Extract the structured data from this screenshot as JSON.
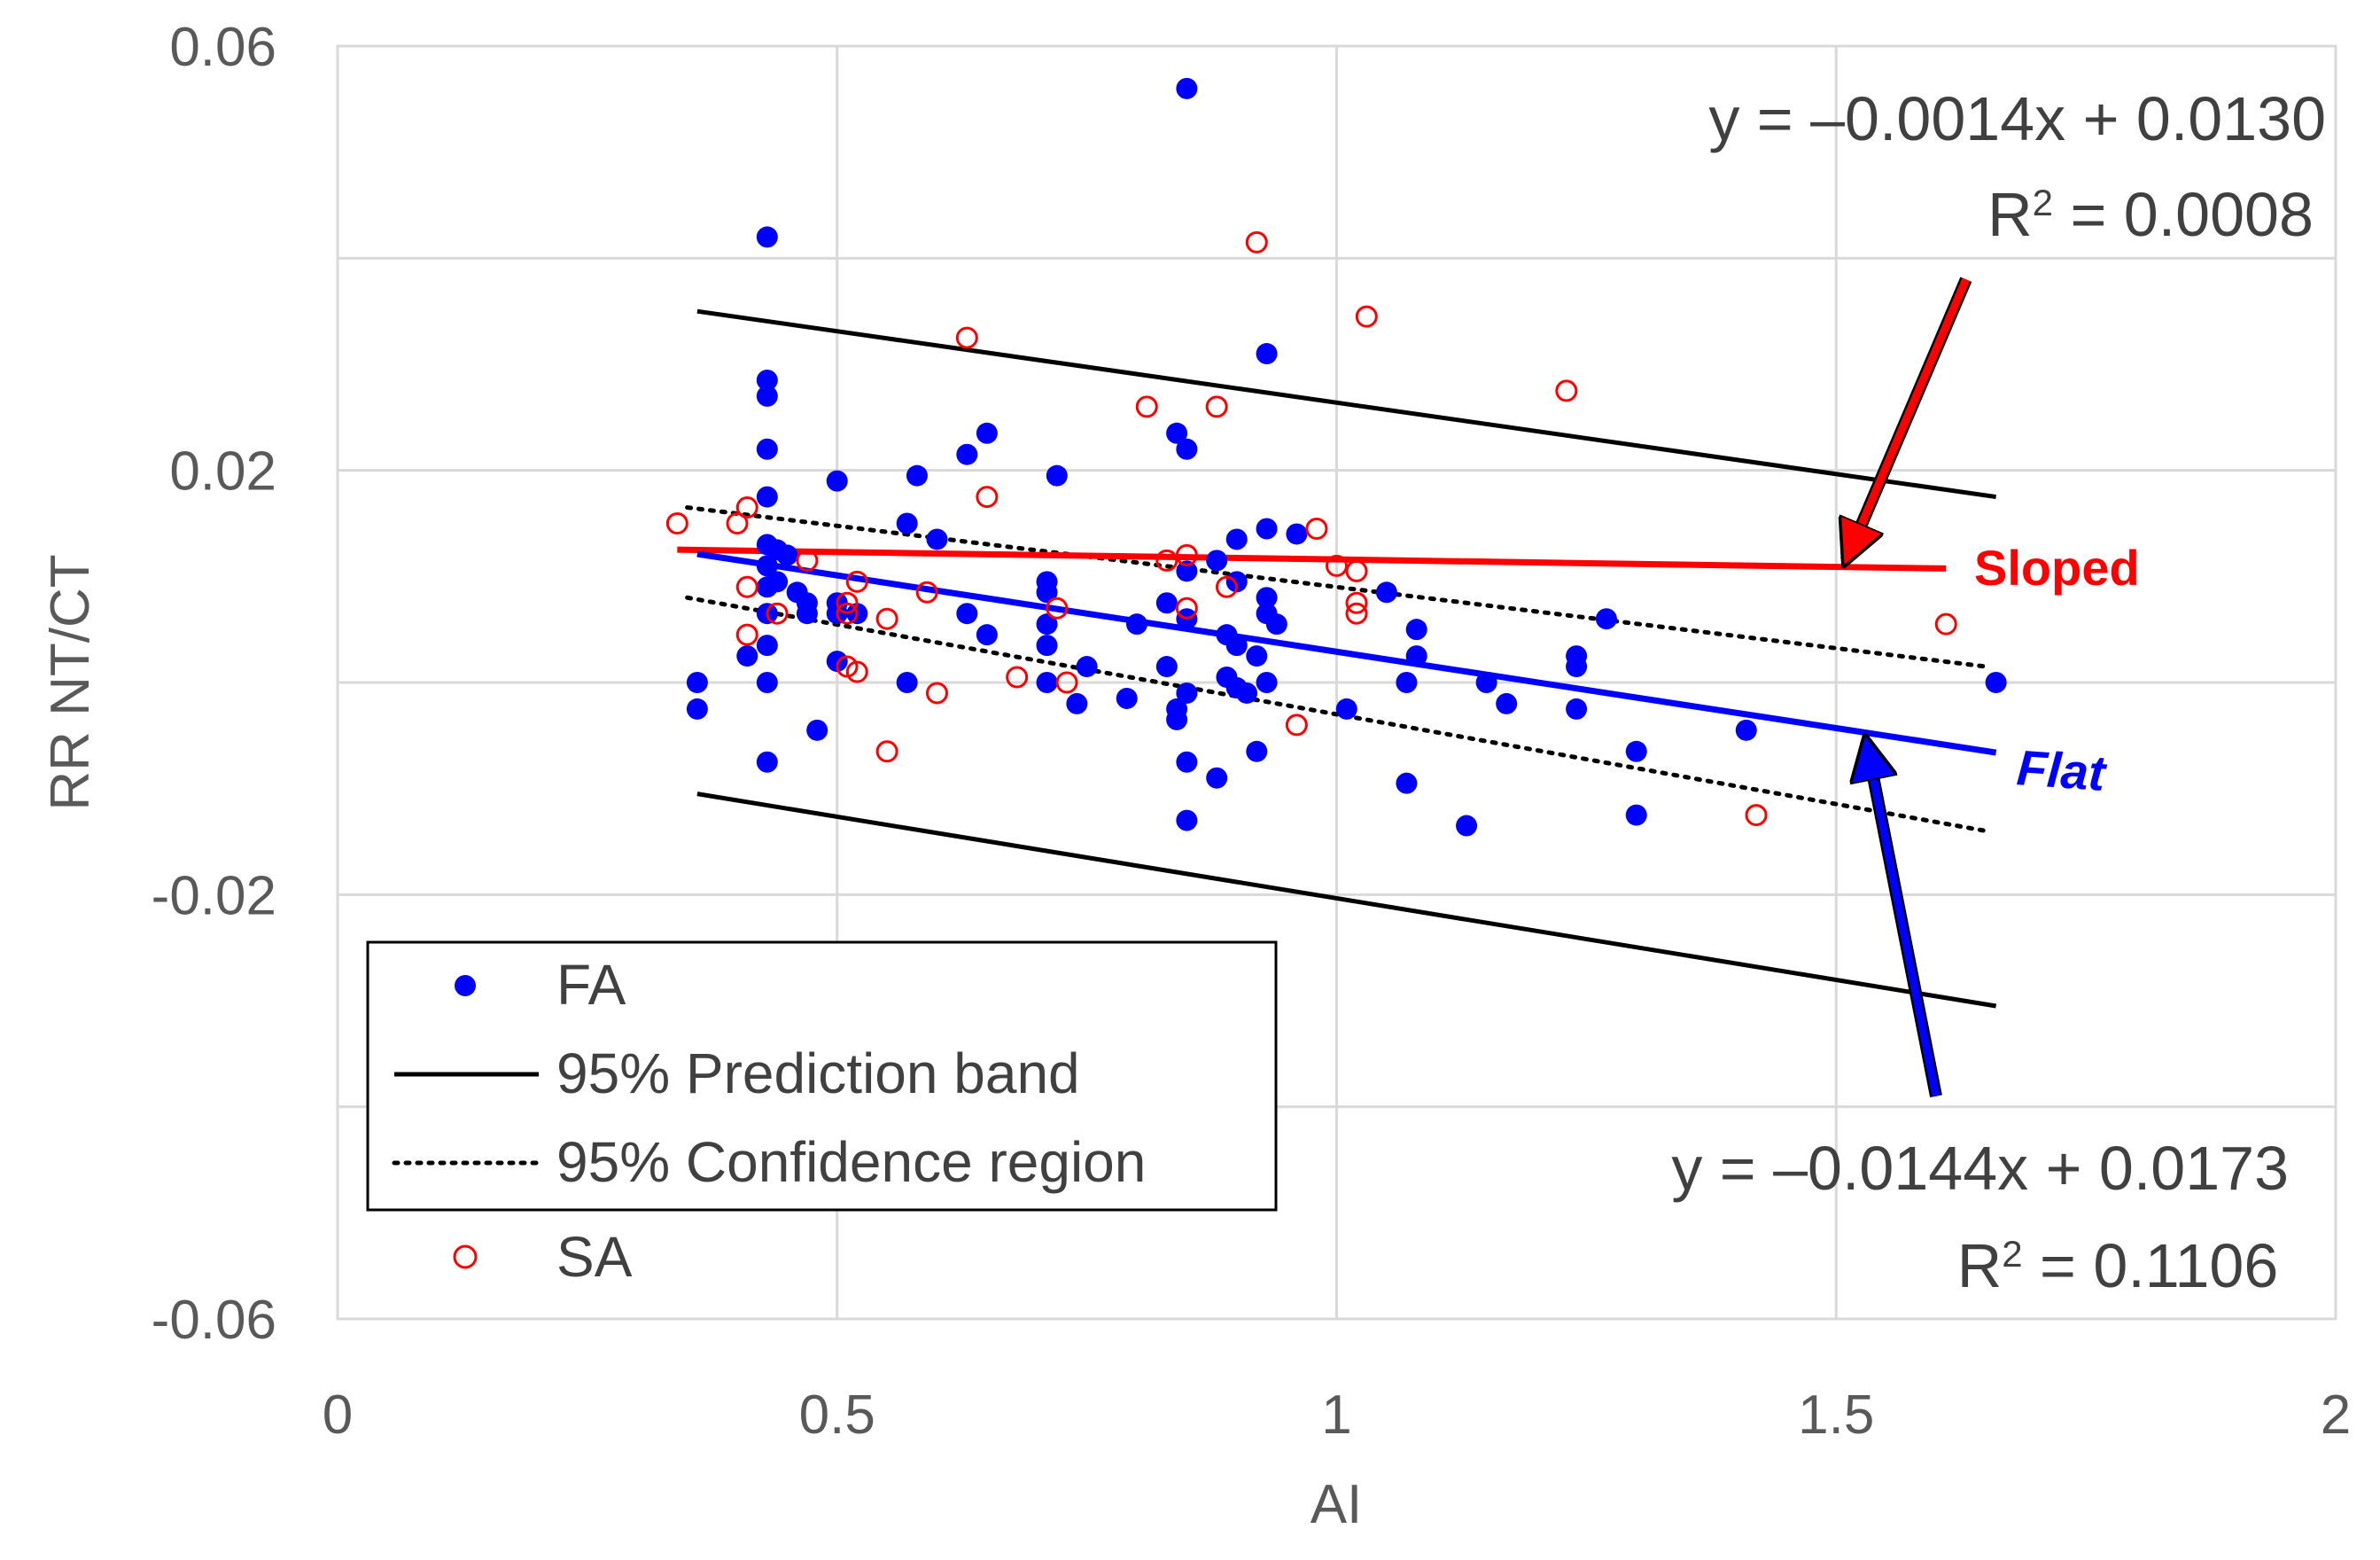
{
  "chart_data": {
    "type": "scatter",
    "title": "",
    "xlabel": "AI",
    "ylabel": "RR NT/CT",
    "xlim": [
      0,
      2
    ],
    "ylim": [
      -0.06,
      0.06
    ],
    "grid": true,
    "x_ticks": [
      0,
      0.5,
      1,
      1.5,
      2
    ],
    "x_tick_labels": [
      "0",
      "0.5",
      "1",
      "1.5",
      "2"
    ],
    "y_ticks": [
      -0.06,
      -0.02,
      0.02,
      0.06
    ],
    "y_tick_labels": [
      "-0.06",
      "-0.02",
      "0.02",
      "0.06"
    ],
    "colors": {
      "fa": "#0000ff",
      "sa": "#ff0000",
      "band": "#000000",
      "grid": "#d9d9d9",
      "axis_text": "#595959"
    },
    "series": [
      {
        "name": "FA",
        "marker": "filled-circle",
        "points": [
          [
            0.36,
            0.0
          ],
          [
            0.36,
            -0.0025
          ],
          [
            0.41,
            0.0025
          ],
          [
            0.43,
            0.042
          ],
          [
            0.43,
            0.0285
          ],
          [
            0.43,
            0.027
          ],
          [
            0.43,
            0.022
          ],
          [
            0.43,
            0.0175
          ],
          [
            0.43,
            0.013
          ],
          [
            0.43,
            0.011
          ],
          [
            0.43,
            0.009
          ],
          [
            0.43,
            0.0065
          ],
          [
            0.43,
            0.0035
          ],
          [
            0.43,
            0.0
          ],
          [
            0.43,
            -0.0075
          ],
          [
            0.44,
            0.0125
          ],
          [
            0.44,
            0.0095
          ],
          [
            0.45,
            0.012
          ],
          [
            0.46,
            0.0085
          ],
          [
            0.47,
            0.0065
          ],
          [
            0.47,
            0.0075
          ],
          [
            0.48,
            -0.0045
          ],
          [
            0.5,
            0.019
          ],
          [
            0.5,
            0.0075
          ],
          [
            0.5,
            0.0065
          ],
          [
            0.5,
            0.002
          ],
          [
            0.52,
            0.0065
          ],
          [
            0.57,
            0.015
          ],
          [
            0.57,
            0.0
          ],
          [
            0.58,
            0.0195
          ],
          [
            0.6,
            0.0135
          ],
          [
            0.63,
            0.0215
          ],
          [
            0.63,
            0.0065
          ],
          [
            0.65,
            0.0235
          ],
          [
            0.65,
            0.0045
          ],
          [
            0.72,
            0.0195
          ],
          [
            0.71,
            0.0095
          ],
          [
            0.71,
            0.0085
          ],
          [
            0.71,
            0.0055
          ],
          [
            0.71,
            0.0035
          ],
          [
            0.71,
            0.0
          ],
          [
            0.74,
            -0.002
          ],
          [
            0.75,
            0.0015
          ],
          [
            0.79,
            -0.0015
          ],
          [
            0.8,
            0.0055
          ],
          [
            0.83,
            0.0075
          ],
          [
            0.83,
            0.0015
          ],
          [
            0.84,
            -0.0035
          ],
          [
            0.84,
            -0.0025
          ],
          [
            0.84,
            0.0235
          ],
          [
            0.85,
            0.056
          ],
          [
            0.85,
            0.022
          ],
          [
            0.85,
            0.0105
          ],
          [
            0.85,
            0.006
          ],
          [
            0.85,
            -0.001
          ],
          [
            0.85,
            -0.0075
          ],
          [
            0.85,
            -0.013
          ],
          [
            0.88,
            0.0115
          ],
          [
            0.88,
            -0.009
          ],
          [
            0.89,
            0.0045
          ],
          [
            0.89,
            0.0005
          ],
          [
            0.9,
            0.0135
          ],
          [
            0.9,
            0.0095
          ],
          [
            0.9,
            0.0035
          ],
          [
            0.9,
            -0.0005
          ],
          [
            0.91,
            -0.001
          ],
          [
            0.92,
            -0.0065
          ],
          [
            0.92,
            0.0025
          ],
          [
            0.93,
            0.031
          ],
          [
            0.93,
            0.0145
          ],
          [
            0.93,
            0.008
          ],
          [
            0.93,
            0.0065
          ],
          [
            0.93,
            0.0
          ],
          [
            0.94,
            0.0055
          ],
          [
            0.96,
            0.014
          ],
          [
            1.01,
            -0.0025
          ],
          [
            1.05,
            0.0085
          ],
          [
            1.07,
            0.0
          ],
          [
            1.07,
            -0.0095
          ],
          [
            1.08,
            0.005
          ],
          [
            1.08,
            0.0025
          ],
          [
            1.13,
            -0.0135
          ],
          [
            1.15,
            0.0
          ],
          [
            1.17,
            -0.002
          ],
          [
            1.24,
            0.0025
          ],
          [
            1.24,
            0.0015
          ],
          [
            1.24,
            -0.0025
          ],
          [
            1.27,
            0.006
          ],
          [
            1.3,
            -0.0065
          ],
          [
            1.3,
            -0.0125
          ],
          [
            1.41,
            -0.0045
          ],
          [
            1.66,
            0.0
          ]
        ]
      },
      {
        "name": "SA",
        "marker": "open-circle",
        "points": [
          [
            0.34,
            0.015
          ],
          [
            0.4,
            0.015
          ],
          [
            0.41,
            0.0165
          ],
          [
            0.41,
            0.009
          ],
          [
            0.41,
            0.0045
          ],
          [
            0.44,
            0.0065
          ],
          [
            0.47,
            0.0115
          ],
          [
            0.51,
            0.0075
          ],
          [
            0.51,
            0.0065
          ],
          [
            0.51,
            0.0015
          ],
          [
            0.52,
            0.0095
          ],
          [
            0.52,
            0.001
          ],
          [
            0.55,
            0.006
          ],
          [
            0.55,
            -0.0065
          ],
          [
            0.59,
            0.0085
          ],
          [
            0.6,
            -0.001
          ],
          [
            0.63,
            0.0325
          ],
          [
            0.65,
            0.0175
          ],
          [
            0.68,
            0.0005
          ],
          [
            0.72,
            0.007
          ],
          [
            0.73,
            0.0
          ],
          [
            0.81,
            0.026
          ],
          [
            0.83,
            0.0115
          ],
          [
            0.85,
            0.012
          ],
          [
            0.85,
            0.007
          ],
          [
            0.88,
            0.026
          ],
          [
            0.89,
            0.009
          ],
          [
            0.92,
            0.0415
          ],
          [
            0.96,
            -0.004
          ],
          [
            0.98,
            0.0145
          ],
          [
            1.0,
            0.011
          ],
          [
            1.02,
            0.0105
          ],
          [
            1.02,
            0.0075
          ],
          [
            1.02,
            0.0065
          ],
          [
            1.03,
            0.0345
          ],
          [
            1.23,
            0.0275
          ],
          [
            1.42,
            -0.0125
          ],
          [
            1.61,
            0.0055
          ]
        ]
      }
    ],
    "fits": [
      {
        "name": "Sloped",
        "series": "SA",
        "equation": "y = –0.0014x + 0.0130",
        "r2_label": "R",
        "r2_sup": "2",
        "r2_value": " = 0.0008",
        "slope": -0.0014,
        "intercept": 0.013,
        "x_range": [
          0.34,
          1.61
        ]
      },
      {
        "name": "Flat",
        "series": "FA",
        "equation": "y = –0.0144x + 0.0173",
        "r2_label": "R",
        "r2_sup": "2",
        "r2_value": " = 0.1106",
        "slope": -0.0144,
        "intercept": 0.0173,
        "x_range": [
          0.36,
          1.66
        ]
      }
    ],
    "bands": {
      "prediction": {
        "label": "95% Prediction band",
        "style": "solid",
        "upper": [
          [
            0.36,
            0.035
          ],
          [
            1.66,
            0.0175
          ]
        ],
        "lower": [
          [
            0.36,
            -0.0105
          ],
          [
            1.66,
            -0.0305
          ]
        ]
      },
      "confidence": {
        "label": "95% Confidence region",
        "style": "dotted",
        "upper": [
          [
            0.35,
            0.0165
          ],
          [
            1.65,
            0.0015
          ]
        ],
        "lower": [
          [
            0.35,
            0.008
          ],
          [
            1.65,
            -0.014
          ]
        ]
      }
    },
    "legend": {
      "placement": "bottom-left",
      "entries": [
        "FA",
        "95% Prediction band",
        "95% Confidence region",
        "SA"
      ]
    },
    "annotations": {
      "sloped_label": "Sloped",
      "flat_label": "Flat",
      "sloped_arrow": {
        "from": [
          1.63,
          0.038
        ],
        "to": [
          1.51,
          0.0115
        ]
      },
      "flat_arrow": {
        "from": [
          1.6,
          -0.039
        ],
        "to": [
          1.53,
          -0.0055
        ]
      }
    }
  }
}
